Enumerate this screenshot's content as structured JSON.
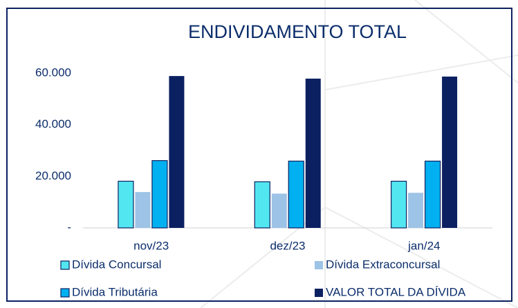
{
  "chart_data": {
    "type": "bar",
    "title": "ENDIVIDAMENTO TOTAL",
    "categories": [
      "nov/23",
      "dez/23",
      "jan/24"
    ],
    "series": [
      {
        "name": "Dívida Concursal",
        "color": "#52e6f0",
        "values": [
          18100,
          17900,
          18100
        ]
      },
      {
        "name": "Dívida Extraconcursal",
        "color": "#9dc3e6",
        "values": [
          13900,
          13300,
          13600
        ]
      },
      {
        "name": "Dívida Tributária",
        "color": "#00b0f0",
        "values": [
          26100,
          25900,
          25900
        ]
      },
      {
        "name": "VALOR TOTAL DA DÍVIDA",
        "color": "#0b2060",
        "values": [
          58900,
          57900,
          58700
        ]
      }
    ],
    "ylim": [
      0,
      60000
    ],
    "yticks": [
      {
        "value": 0,
        "label": "-"
      },
      {
        "value": 20000,
        "label": "20.000"
      },
      {
        "value": 40000,
        "label": "40.000"
      },
      {
        "value": 60000,
        "label": "60.000"
      }
    ],
    "grid": false,
    "legend": "bottom"
  }
}
